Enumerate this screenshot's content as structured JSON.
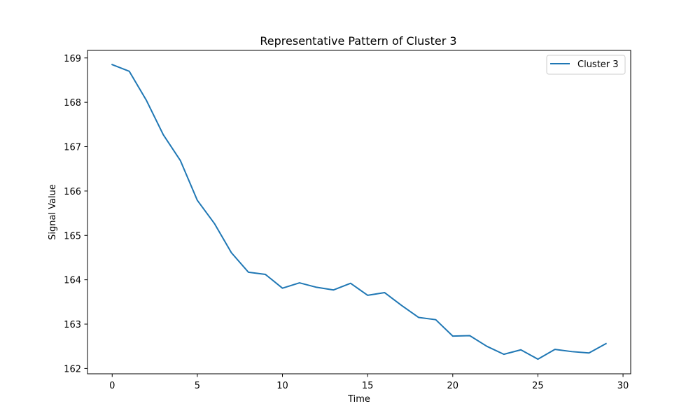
{
  "chart_data": {
    "type": "line",
    "title": "Representative Pattern of Cluster 3",
    "xlabel": "Time",
    "ylabel": "Signal Value",
    "xlim": [
      -1.45,
      30.45
    ],
    "ylim": [
      161.88,
      169.17
    ],
    "xticks": [
      0,
      5,
      10,
      15,
      20,
      25,
      30
    ],
    "yticks": [
      162,
      163,
      164,
      165,
      166,
      167,
      168,
      169
    ],
    "grid": false,
    "legend_position": "top-right",
    "series": [
      {
        "name": "Cluster 3",
        "color": "#1f77b4",
        "x": [
          0,
          1,
          2,
          3,
          4,
          5,
          6,
          7,
          8,
          9,
          10,
          11,
          12,
          13,
          14,
          15,
          16,
          17,
          18,
          19,
          20,
          21,
          22,
          23,
          24,
          25,
          26,
          27,
          28,
          29
        ],
        "y": [
          168.85,
          168.7,
          168.05,
          167.27,
          166.69,
          165.79,
          165.27,
          164.61,
          164.17,
          164.12,
          163.81,
          163.93,
          163.83,
          163.77,
          163.92,
          163.65,
          163.71,
          163.42,
          163.15,
          163.1,
          162.73,
          162.74,
          162.5,
          162.32,
          162.42,
          162.21,
          162.43,
          162.38,
          162.35,
          162.56
        ]
      }
    ]
  }
}
